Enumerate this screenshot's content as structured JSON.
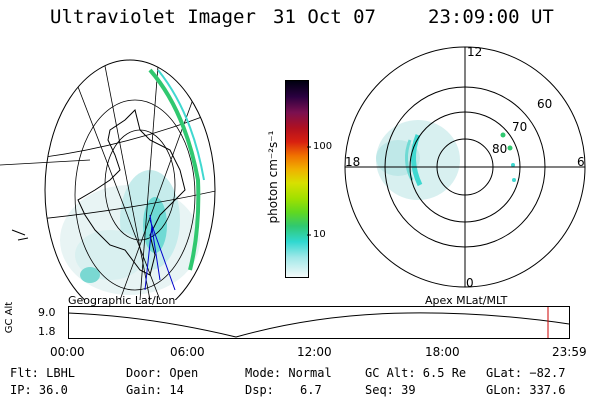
{
  "header": {
    "instrument": "Ultraviolet Imager",
    "date": "31 Oct 07",
    "time": "23:09:00 UT"
  },
  "colorbar": {
    "label": "photon cm⁻²s⁻¹",
    "ticks": [
      "100",
      "10"
    ]
  },
  "polar_plot": {
    "mlt_labels": {
      "top": "12",
      "left": "18",
      "right": "6",
      "bottom": "0"
    },
    "lat_labels": [
      "60",
      "70",
      "80"
    ]
  },
  "panels": {
    "left_caption": "Geographic Lat/Lon",
    "right_caption": "Apex MLat/MLT"
  },
  "altitude_plot": {
    "axis_label": "GC Alt",
    "y_ticks": [
      "9.0",
      "1.8"
    ],
    "x_ticks": [
      "00:00",
      "06:00",
      "12:00",
      "18:00",
      "23:59"
    ],
    "marker_color": "#cc0000"
  },
  "footer": {
    "flt": "Flt: LBHL",
    "ip": "IP: 36.0",
    "door": "Door: Open",
    "gain": "Gain: 14",
    "mode": "Mode: Normal",
    "dsp_label": "Dsp:",
    "dsp_value": "6.7",
    "gcalt": "GC Alt: 6.5 Re",
    "seq": "Seq: 39",
    "glat": "GLat: −82.7",
    "glon": "GLon: 337.6"
  },
  "colors": {
    "aurora": "#40d8d0",
    "aurora_light": "#b8ecec",
    "aurora_green": "#30c870"
  }
}
